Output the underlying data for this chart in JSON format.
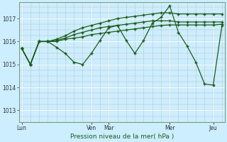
{
  "xlabel": "Pression niveau de la mer( hPa )",
  "bg_color": "#cceeff",
  "line_color": "#1a5c1a",
  "grid_color_major": "#aacccc",
  "grid_color_minor": "#ddeedd",
  "ylim": [
    1012.5,
    1017.7
  ],
  "xlim": [
    -0.3,
    23.3
  ],
  "day_labels": [
    "Lun",
    "Ven",
    "Mar",
    "Mer",
    "Jeu"
  ],
  "day_x": [
    0,
    8,
    10,
    17,
    22
  ],
  "yticks": [
    1013,
    1014,
    1015,
    1016,
    1017
  ],
  "s1_x": [
    0,
    1,
    2,
    3,
    4,
    5,
    6,
    7,
    8,
    9,
    10,
    11,
    12,
    13,
    14,
    15,
    16,
    17,
    18,
    19,
    20,
    21,
    22,
    23
  ],
  "s1_y": [
    1015.7,
    1015.0,
    1016.0,
    1016.0,
    1016.0,
    1016.1,
    1016.15,
    1016.2,
    1016.3,
    1016.35,
    1016.4,
    1016.45,
    1016.5,
    1016.55,
    1016.6,
    1016.65,
    1016.7,
    1016.72,
    1016.72,
    1016.72,
    1016.72,
    1016.72,
    1016.72,
    1016.75
  ],
  "s2_x": [
    0,
    1,
    2,
    3,
    4,
    5,
    6,
    7,
    8,
    9,
    10,
    11,
    12,
    13,
    14,
    15,
    16,
    17,
    18,
    19,
    20,
    21,
    22,
    23
  ],
  "s2_y": [
    1015.7,
    1015.0,
    1016.0,
    1016.0,
    1016.05,
    1016.15,
    1016.3,
    1016.4,
    1016.5,
    1016.6,
    1016.65,
    1016.7,
    1016.75,
    1016.8,
    1016.85,
    1016.9,
    1016.9,
    1016.9,
    1016.85,
    1016.85,
    1016.85,
    1016.85,
    1016.85,
    1016.85
  ],
  "s3_x": [
    0,
    1,
    2,
    3,
    4,
    5,
    6,
    7,
    8,
    9,
    10,
    11,
    12,
    13,
    14,
    15,
    16,
    17,
    18,
    19,
    20,
    21,
    22,
    23
  ],
  "s3_y": [
    1015.7,
    1015.0,
    1016.0,
    1016.0,
    1016.1,
    1016.25,
    1016.45,
    1016.6,
    1016.7,
    1016.8,
    1016.9,
    1017.0,
    1017.05,
    1017.1,
    1017.15,
    1017.2,
    1017.25,
    1017.25,
    1017.2,
    1017.2,
    1017.2,
    1017.2,
    1017.2,
    1017.2
  ],
  "s4_x": [
    0,
    1,
    2,
    3,
    4,
    5,
    6,
    7,
    8,
    9,
    10,
    11,
    12,
    13,
    14,
    15,
    16,
    17,
    18,
    19,
    20,
    21,
    22,
    23
  ],
  "s4_y": [
    1015.7,
    1015.0,
    1016.0,
    1016.0,
    1015.75,
    1015.48,
    1015.1,
    1015.0,
    1015.48,
    1016.05,
    1016.6,
    1016.7,
    1016.05,
    1015.48,
    1016.05,
    1016.8,
    1017.05,
    1017.55,
    1016.4,
    1015.8,
    1015.1,
    1014.15,
    1014.1,
    1016.7
  ]
}
